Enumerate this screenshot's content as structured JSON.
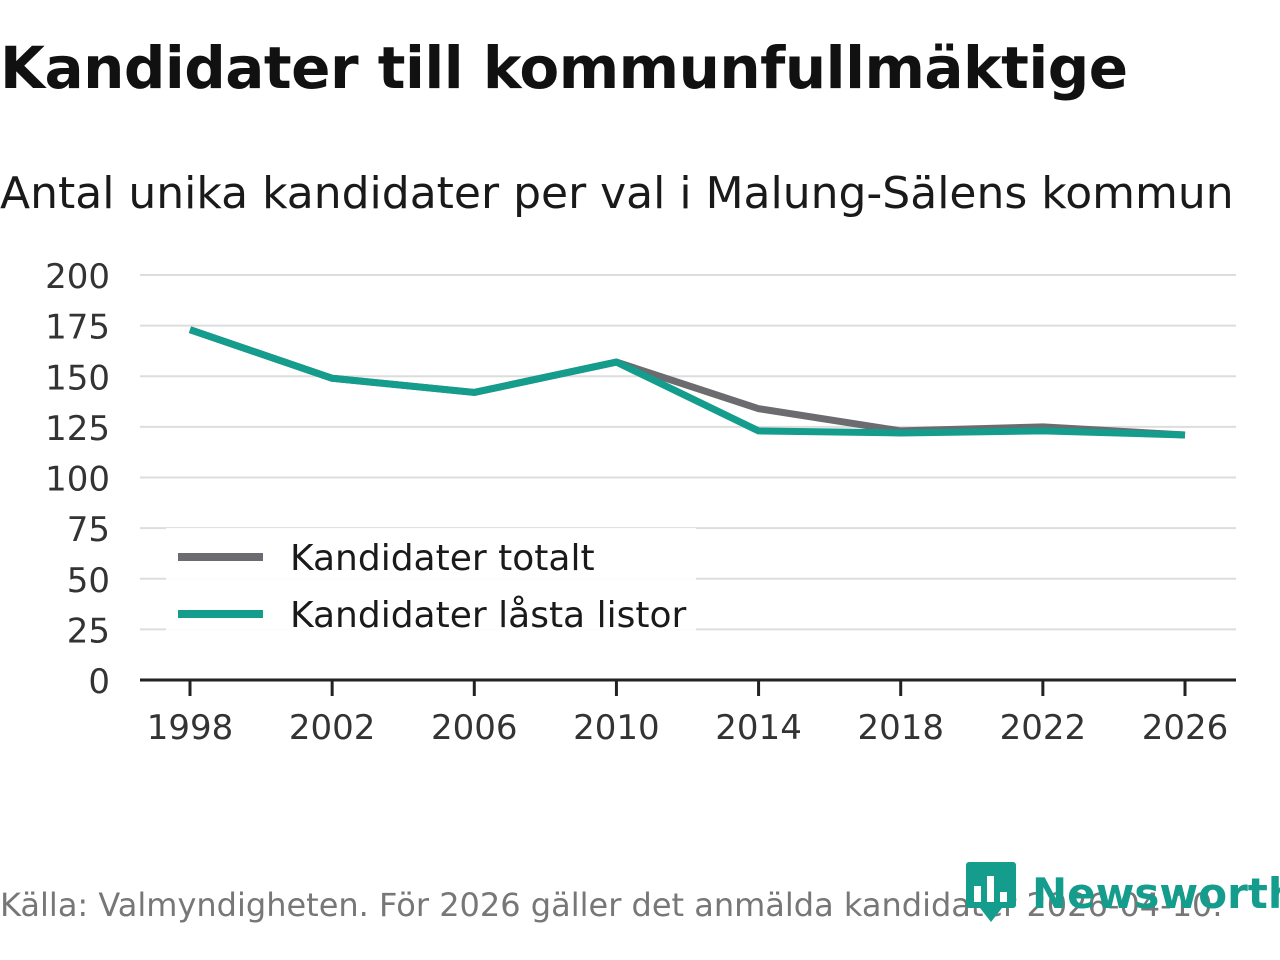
{
  "header": {
    "title": "Kandidater till kommunfullmäktige",
    "subtitle": "Antal unika kandidater per val i Malung-Sälens kommun"
  },
  "footer": {
    "source": "Källa: Valmyndigheten. För 2026 gäller det anmälda kandidater 2026-04-10.",
    "brand": "Newsworthy"
  },
  "colors": {
    "totalt": "#6b6b70",
    "lasta": "#149c8c",
    "grid": "#dddddd",
    "axis": "#222222",
    "brand": "#149c8c"
  },
  "chart_data": {
    "type": "line",
    "title": "Kandidater till kommunfullmäktige",
    "subtitle": "Antal unika kandidater per val i Malung-Sälens kommun",
    "xlabel": "",
    "ylabel": "",
    "x": [
      1998,
      2002,
      2006,
      2010,
      2014,
      2018,
      2022,
      2026
    ],
    "ylim": [
      0,
      200
    ],
    "yticks": [
      0,
      25,
      50,
      75,
      100,
      125,
      150,
      175,
      200
    ],
    "grid": true,
    "legend_position": "bottom-left",
    "series": [
      {
        "name": "Kandidater totalt",
        "color": "#6b6b70",
        "values": [
          173,
          149,
          142,
          157,
          134,
          123,
          125,
          121
        ]
      },
      {
        "name": "Kandidater låsta listor",
        "color": "#149c8c",
        "values": [
          173,
          149,
          142,
          157,
          123,
          122,
          123,
          121
        ]
      }
    ]
  }
}
